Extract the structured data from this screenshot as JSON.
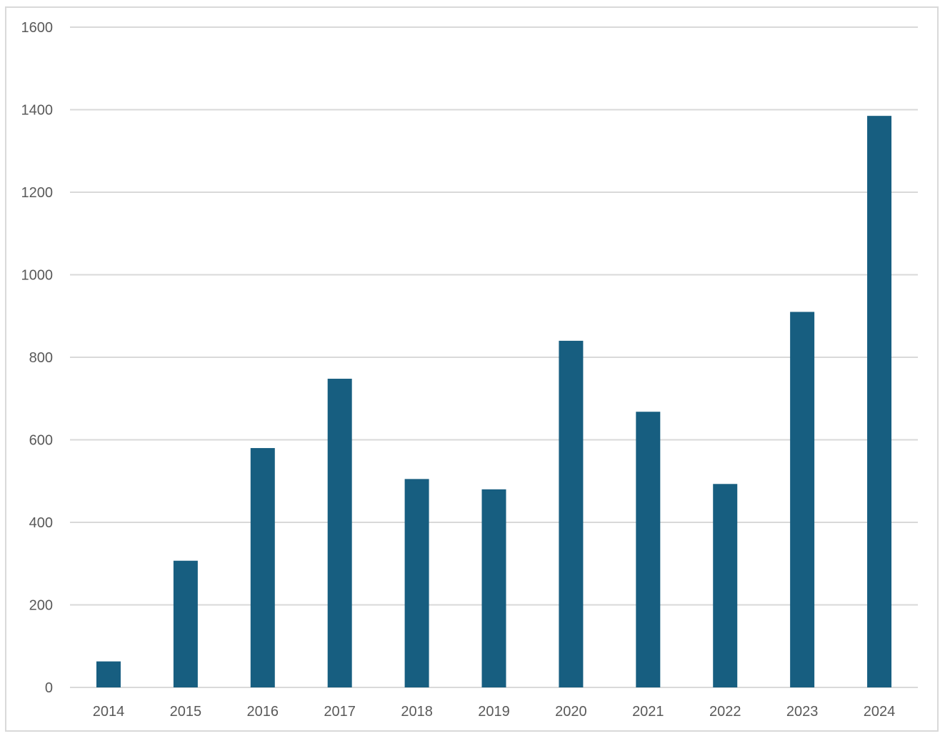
{
  "chart_data": {
    "type": "bar",
    "title": "",
    "xlabel": "",
    "ylabel": "",
    "categories": [
      "2014",
      "2015",
      "2016",
      "2017",
      "2018",
      "2019",
      "2020",
      "2021",
      "2022",
      "2023",
      "2024"
    ],
    "values": [
      63,
      307,
      580,
      748,
      505,
      480,
      840,
      668,
      493,
      910,
      1385
    ],
    "ylim": [
      0,
      1600
    ],
    "yticks": [
      "0",
      "200",
      "400",
      "600",
      "800",
      "1000",
      "1200",
      "1400",
      "1600"
    ],
    "grid": true,
    "legend": "none",
    "bar_color": "#175e80",
    "grid_color": "#d9d9d9",
    "label_color": "#595959"
  }
}
